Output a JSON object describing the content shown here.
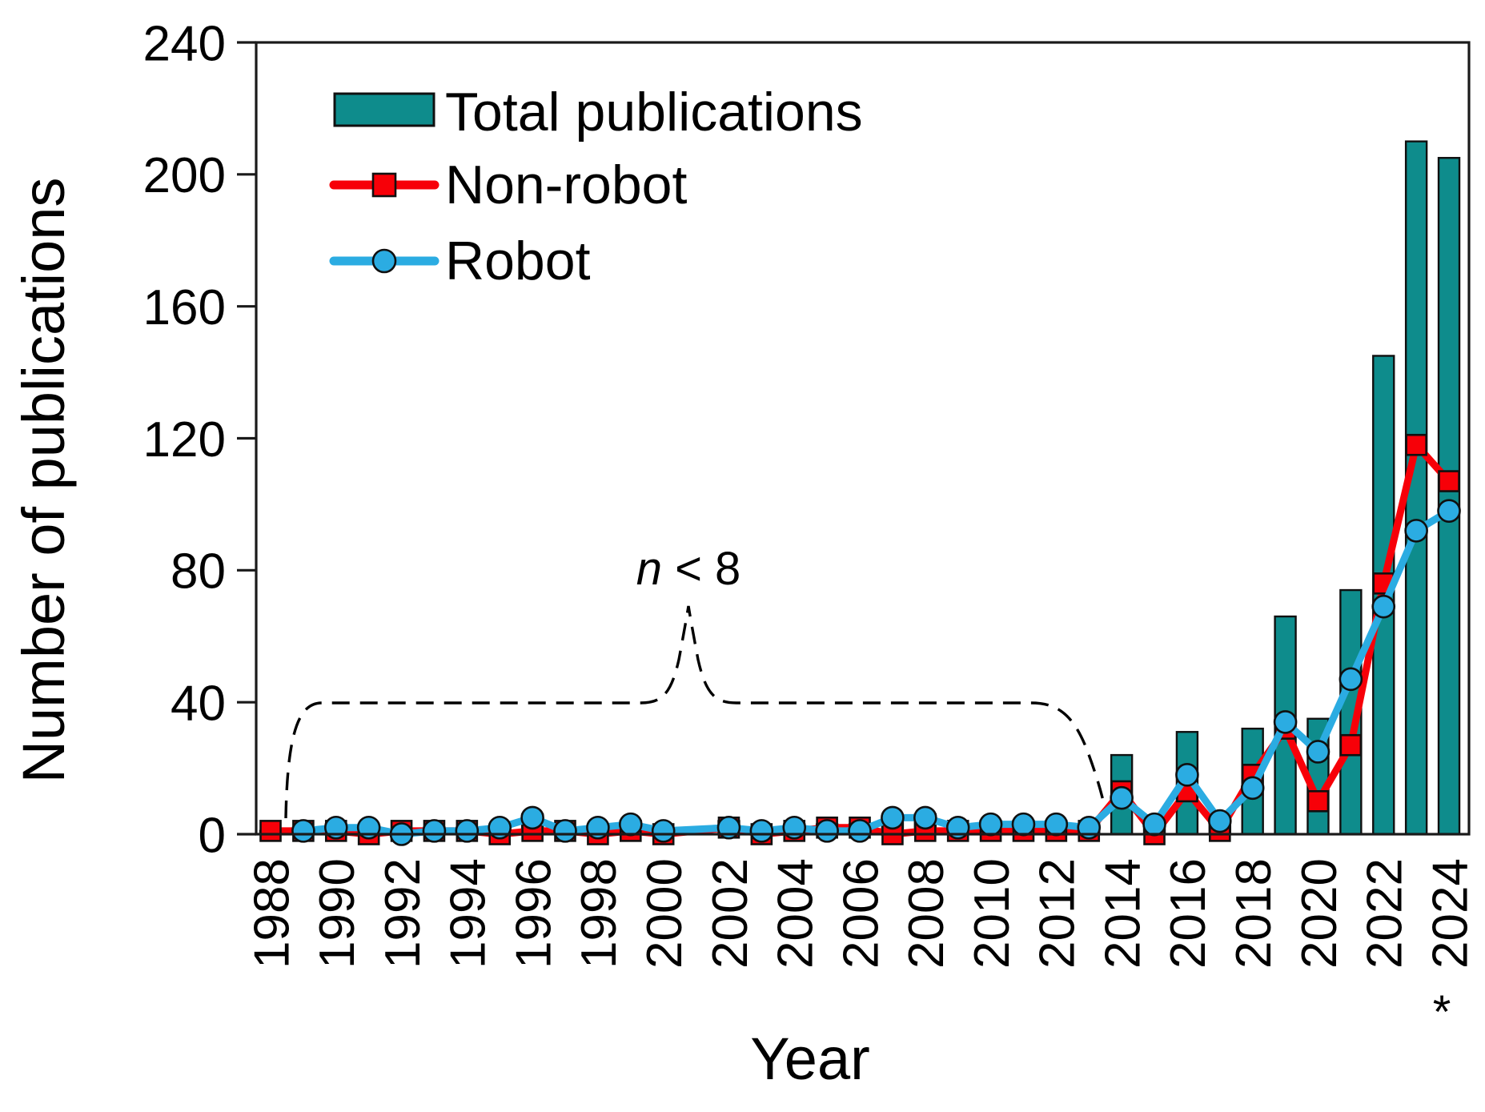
{
  "figure": {
    "y_axis_title": "Number of publications",
    "x_axis_title": "Year",
    "footnote_marker": "*"
  },
  "legend": [
    {
      "label": "Total publications",
      "type": "bar"
    },
    {
      "label": "Non-robot",
      "type": "line-square"
    },
    {
      "label": "Robot",
      "type": "line-circle"
    }
  ],
  "annotation": {
    "variable": "n",
    "rest": " < 8"
  },
  "colors": {
    "bar": "#0e8c8c",
    "non_robot": "#f70008",
    "robot": "#2bace2",
    "axis": "#1a1a1a",
    "marker_outline": "#101010"
  },
  "chart_data": {
    "type": "bar+line",
    "title": "",
    "xlabel": "Year",
    "ylabel": "Number of publications",
    "x": [
      1988,
      1989,
      1990,
      1991,
      1992,
      1993,
      1994,
      1995,
      1996,
      1997,
      1998,
      1999,
      2000,
      2001,
      2002,
      2003,
      2004,
      2005,
      2006,
      2007,
      2008,
      2009,
      2010,
      2011,
      2012,
      2013,
      2014,
      2015,
      2016,
      2017,
      2018,
      2019,
      2020,
      2021,
      2022,
      2023,
      2024
    ],
    "series": [
      {
        "name": "Total publications",
        "type": "bar",
        "values": [
          1,
          2,
          3,
          2,
          1,
          2,
          2,
          2,
          6,
          2,
          2,
          4,
          1,
          0,
          4,
          1,
          3,
          3,
          3,
          5,
          6,
          3,
          4,
          4,
          4,
          3,
          24,
          4,
          31,
          5,
          32,
          66,
          35,
          74,
          145,
          210,
          205
        ]
      },
      {
        "name": "Non-robot",
        "type": "line",
        "marker": "square",
        "values": [
          1,
          1,
          1,
          0,
          1,
          1,
          1,
          0,
          1,
          1,
          0,
          1,
          0,
          null,
          2,
          0,
          1,
          2,
          2,
          0,
          1,
          1,
          1,
          1,
          1,
          1,
          13,
          0,
          13,
          1,
          18,
          32,
          10,
          27,
          76,
          118,
          107
        ]
      },
      {
        "name": "Robot",
        "type": "line",
        "marker": "circle",
        "values": [
          null,
          1,
          2,
          2,
          0,
          1,
          1,
          2,
          5,
          1,
          2,
          3,
          1,
          null,
          2,
          1,
          2,
          1,
          1,
          5,
          5,
          2,
          3,
          3,
          3,
          2,
          11,
          3,
          18,
          4,
          14,
          34,
          25,
          47,
          69,
          92,
          98
        ]
      }
    ],
    "ylim": [
      0,
      240
    ],
    "yticks": [
      0,
      40,
      80,
      120,
      160,
      200,
      240
    ],
    "xtick_step": 2,
    "xtick_note_year": 2024,
    "legend_position": "upper-left",
    "grid": false,
    "annotation_text": "n < 8",
    "annotation_span_years": [
      1988,
      2013
    ]
  }
}
